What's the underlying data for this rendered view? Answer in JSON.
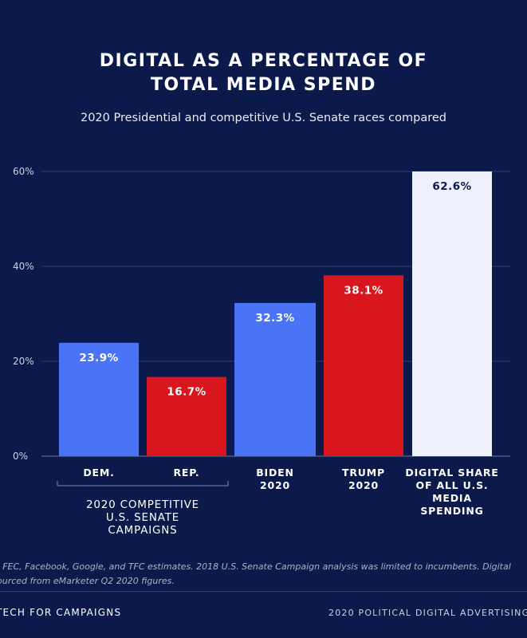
{
  "chart_data": {
    "type": "bar",
    "title_lines": [
      "DIGITAL AS A PERCENTAGE OF",
      "TOTAL MEDIA SPEND"
    ],
    "subtitle": "2020 Presidential and competitive U.S. Senate races compared",
    "xlabel": "",
    "ylabel": "",
    "ylim": [
      0,
      60
    ],
    "yticks": [
      0,
      20,
      40,
      60
    ],
    "ytick_labels": [
      "0%",
      "20%",
      "40%",
      "60%"
    ],
    "grid": true,
    "legend": "none",
    "bars": [
      {
        "category_lines": [
          "DEM."
        ],
        "value": 23.9,
        "label": "23.9%",
        "color": "#4a74f5",
        "label_color": "#ffffff"
      },
      {
        "category_lines": [
          "REP."
        ],
        "value": 16.7,
        "label": "16.7%",
        "color": "#d9161d",
        "label_color": "#ffffff"
      },
      {
        "category_lines": [
          "BIDEN",
          "2020"
        ],
        "value": 32.3,
        "label": "32.3%",
        "color": "#4a74f5",
        "label_color": "#ffffff"
      },
      {
        "category_lines": [
          "TRUMP",
          "2020"
        ],
        "value": 38.1,
        "label": "38.1%",
        "color": "#d9161d",
        "label_color": "#ffffff"
      },
      {
        "category_lines": [
          "DIGITAL SHARE",
          "OF ALL U.S.",
          "MEDIA",
          "SPENDING"
        ],
        "value": 62.6,
        "label": "62.6%",
        "color": "#eef1fb",
        "label_color": "#0b1a4a"
      }
    ],
    "group_annotation": {
      "spans_bars": [
        0,
        1
      ],
      "label_lines": [
        "2020 COMPETITIVE",
        "U.S. SENATE",
        "CAMPAIGNS"
      ]
    }
  },
  "footnote_lines": [
    ": FEC, Facebook, Google, and TFC estimates. 2018 U.S. Senate Campaign analysis was limited to incumbents. Digital",
    "ourced from eMarketer Q2 2020 figures."
  ],
  "footer": {
    "left": "TECH FOR CAMPAIGNS",
    "right": "2020 POLITICAL DIGITAL ADVERTISING R"
  },
  "colors": {
    "background": "#0b1a4a",
    "democrat": "#4a74f5",
    "republican": "#d9161d",
    "overall": "#eef1fb"
  }
}
